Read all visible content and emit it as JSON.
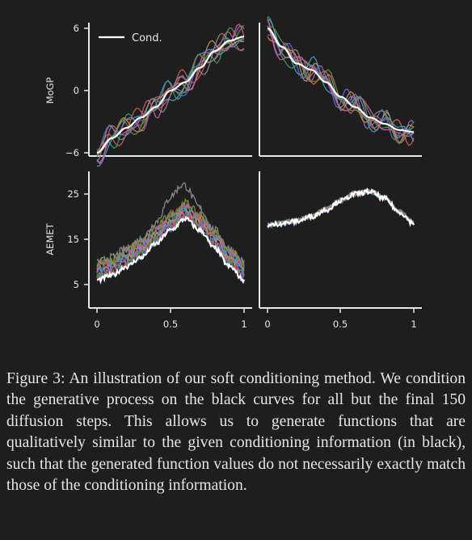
{
  "legend": {
    "label": "Cond."
  },
  "row_labels": [
    "MoGP",
    "AEMET"
  ],
  "caption": {
    "label": "Figure 3:",
    "text": "An illustration of our soft conditioning method. We condition the generative process on the black curves for all but the final 150 diffusion steps. This allows us to generate functions that are qualitatively similar to the given conditioning information (in black), such that the generated function values do not necessarily exactly match those of the conditioning information."
  },
  "colors": {
    "background": "#1e1e1e",
    "axis": "#e8e8e8",
    "cond": "#ffffff",
    "samples": [
      "#5b6fd6",
      "#cf5a5a",
      "#3f9a6a",
      "#9a5fc0",
      "#d08a3a",
      "#3aa0c8",
      "#c85aa0",
      "#7a8a3a",
      "#888888"
    ]
  },
  "chart_data": [
    {
      "type": "line",
      "panel": "top-left",
      "ylabel": "MoGP",
      "xlim": [
        0,
        1
      ],
      "ylim": [
        -6.5,
        7
      ],
      "yticks": [
        -6,
        0,
        6
      ],
      "legend": "top-left",
      "series": [
        {
          "name": "Cond.",
          "x": [
            0,
            0.1,
            0.2,
            0.3,
            0.4,
            0.5,
            0.6,
            0.7,
            0.8,
            0.9,
            1
          ],
          "y": [
            -6,
            -4.6,
            -3.6,
            -2.6,
            -1.6,
            0,
            0.8,
            2.2,
            3.8,
            4.8,
            5.2
          ]
        }
      ]
    },
    {
      "type": "line",
      "panel": "top-right",
      "xlim": [
        0,
        1
      ],
      "ylim": [
        -6.5,
        7
      ],
      "series": [
        {
          "name": "Cond.",
          "x": [
            0,
            0.1,
            0.2,
            0.3,
            0.4,
            0.5,
            0.6,
            0.7,
            0.8,
            0.9,
            1
          ],
          "y": [
            6,
            4.2,
            2.6,
            2.0,
            0.8,
            -0.6,
            -1.6,
            -2.6,
            -3.2,
            -3.8,
            -4.0
          ]
        }
      ]
    },
    {
      "type": "line",
      "panel": "bottom-left",
      "ylabel": "AEMET",
      "xlim": [
        0,
        1
      ],
      "ylim": [
        0,
        30
      ],
      "yticks": [
        5,
        15,
        25
      ],
      "xticks": [
        "0",
        "0.5",
        "1"
      ],
      "series": [
        {
          "name": "Cond.",
          "x": [
            0,
            0.1,
            0.2,
            0.3,
            0.4,
            0.5,
            0.6,
            0.7,
            0.8,
            0.9,
            1
          ],
          "y": [
            6,
            7,
            9,
            11,
            14,
            17,
            19.5,
            17,
            13,
            9,
            6
          ]
        }
      ]
    },
    {
      "type": "line",
      "panel": "bottom-right",
      "xlim": [
        0,
        1
      ],
      "ylim": [
        0,
        30
      ],
      "xticks": [
        "0",
        "0.5",
        "1"
      ],
      "series": [
        {
          "name": "Cond.",
          "x": [
            0,
            0.1,
            0.2,
            0.3,
            0.4,
            0.5,
            0.6,
            0.7,
            0.8,
            0.9,
            1
          ],
          "y": [
            18,
            18.5,
            19,
            20,
            21.5,
            23.5,
            25,
            25.5,
            24,
            21,
            18.5
          ]
        }
      ]
    }
  ]
}
